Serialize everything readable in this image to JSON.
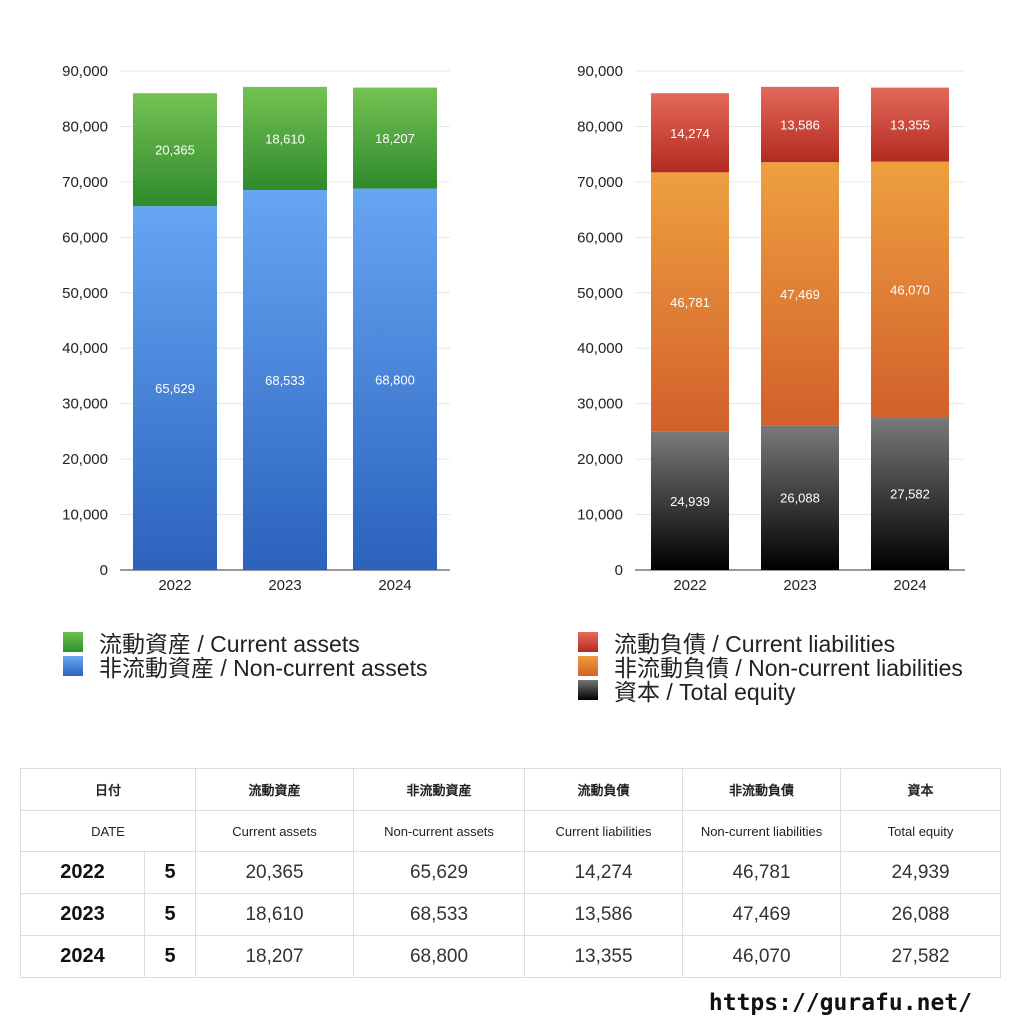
{
  "chart_data": [
    {
      "type": "bar",
      "stacked": true,
      "categories": [
        "2022",
        "2023",
        "2024"
      ],
      "ylim": [
        0,
        90000
      ],
      "yticks": [
        "0",
        "10,000",
        "20,000",
        "30,000",
        "40,000",
        "50,000",
        "60,000",
        "70,000",
        "80,000",
        "90,000"
      ],
      "grid": true,
      "series": [
        {
          "name": "非流動資産 / Non-current assets",
          "values": [
            65629,
            68533,
            68800
          ],
          "labels": [
            "65,629",
            "68,533",
            "68,800"
          ],
          "color": "#4a8fe0"
        },
        {
          "name": "流動資産 / Current assets",
          "values": [
            20365,
            18610,
            18207
          ],
          "labels": [
            "20,365",
            "18,610",
            "18,207"
          ],
          "color": "#4fa83d"
        }
      ]
    },
    {
      "type": "bar",
      "stacked": true,
      "categories": [
        "2022",
        "2023",
        "2024"
      ],
      "ylim": [
        0,
        90000
      ],
      "yticks": [
        "0",
        "10,000",
        "20,000",
        "30,000",
        "40,000",
        "50,000",
        "60,000",
        "70,000",
        "80,000",
        "90,000"
      ],
      "grid": true,
      "series": [
        {
          "name": "資本 / Total equity",
          "values": [
            24939,
            26088,
            27582
          ],
          "labels": [
            "24,939",
            "26,088",
            "27,582"
          ],
          "color": "#333333"
        },
        {
          "name": "非流動負債 / Non-current liabilities",
          "values": [
            46781,
            47469,
            46070
          ],
          "labels": [
            "46,781",
            "47,469",
            "46,070"
          ],
          "color": "#e2822f"
        },
        {
          "name": "流動負債 / Current liabilities",
          "values": [
            14274,
            13586,
            13355
          ],
          "labels": [
            "14,274",
            "13,586",
            "13,355"
          ],
          "color": "#d1473a"
        }
      ]
    }
  ],
  "legend_left": {
    "current_assets": "流動資産 / Current assets",
    "noncurrent_assets": "非流動資産 / Non-current assets"
  },
  "legend_right": {
    "current_liabilities": "流動負債 / Current liabilities",
    "noncurrent_liabilities": "非流動負債 / Non-current liabilities",
    "total_equity": "資本 / Total equity"
  },
  "table": {
    "header_jp": [
      "日付",
      "流動資産",
      "非流動資産",
      "流動負債",
      "非流動負債",
      "資本"
    ],
    "header_en": [
      "DATE",
      "Current assets",
      "Non-current assets",
      "Current liabilities",
      "Non-current liabilities",
      "Total equity"
    ],
    "rows": [
      {
        "year": "2022",
        "month": "5",
        "values": [
          "20,365",
          "65,629",
          "14,274",
          "46,781",
          "24,939"
        ]
      },
      {
        "year": "2023",
        "month": "5",
        "values": [
          "18,610",
          "68,533",
          "13,586",
          "47,469",
          "26,088"
        ]
      },
      {
        "year": "2024",
        "month": "5",
        "values": [
          "18,207",
          "68,800",
          "13,355",
          "46,070",
          "27,582"
        ]
      }
    ]
  },
  "footer": {
    "url": "https://gurafu.net/"
  }
}
